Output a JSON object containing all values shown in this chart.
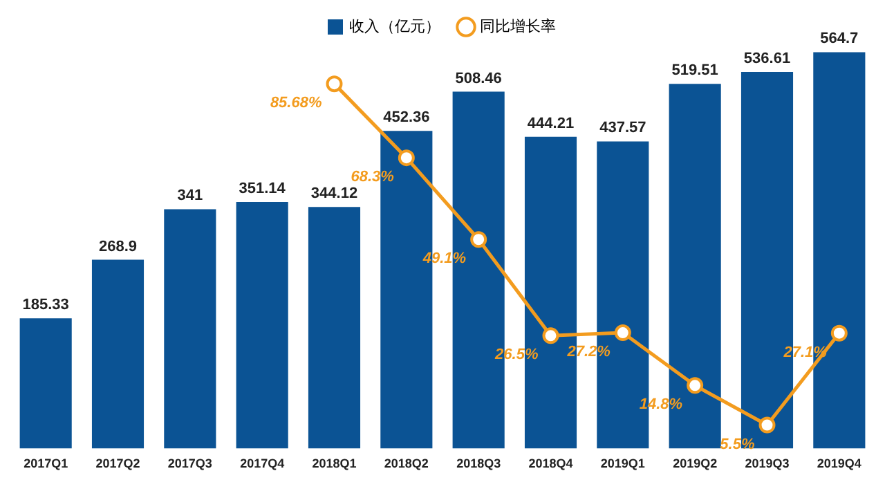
{
  "chart_data": {
    "type": "bar",
    "categories": [
      "2017Q1",
      "2017Q2",
      "2017Q3",
      "2017Q4",
      "2018Q1",
      "2018Q2",
      "2018Q3",
      "2018Q4",
      "2019Q1",
      "2019Q2",
      "2019Q3",
      "2019Q4"
    ],
    "series": [
      {
        "name": "收入（亿元）",
        "color": "#0b5394",
        "values": [
          185.33,
          268.9,
          341,
          351.14,
          344.12,
          452.36,
          508.46,
          444.21,
          437.57,
          519.51,
          536.61,
          564.7
        ],
        "value_labels": [
          "185.33",
          "268.9",
          "341",
          "351.14",
          "344.12",
          "452.36",
          "508.46",
          "444.21",
          "437.57",
          "519.51",
          "536.61",
          "564.7"
        ]
      },
      {
        "name": "同比增长率",
        "type": "line",
        "axis": "y2",
        "color": "#f39c1f",
        "values": [
          null,
          null,
          null,
          null,
          85.68,
          68.3,
          49.1,
          26.5,
          27.2,
          14.8,
          5.5,
          27.1
        ],
        "value_labels": [
          null,
          null,
          null,
          null,
          "85.68%",
          "68.3%",
          "49.1%",
          "26.5%",
          "27.2%",
          "14.8%",
          "5.5%",
          "27.1%"
        ]
      }
    ],
    "ylim": [
      0,
      570
    ],
    "y2lim": [
      0,
      94
    ],
    "tick_labels": "x",
    "grid": false,
    "legend": "top",
    "marker": "circle",
    "line_style": "solid"
  }
}
